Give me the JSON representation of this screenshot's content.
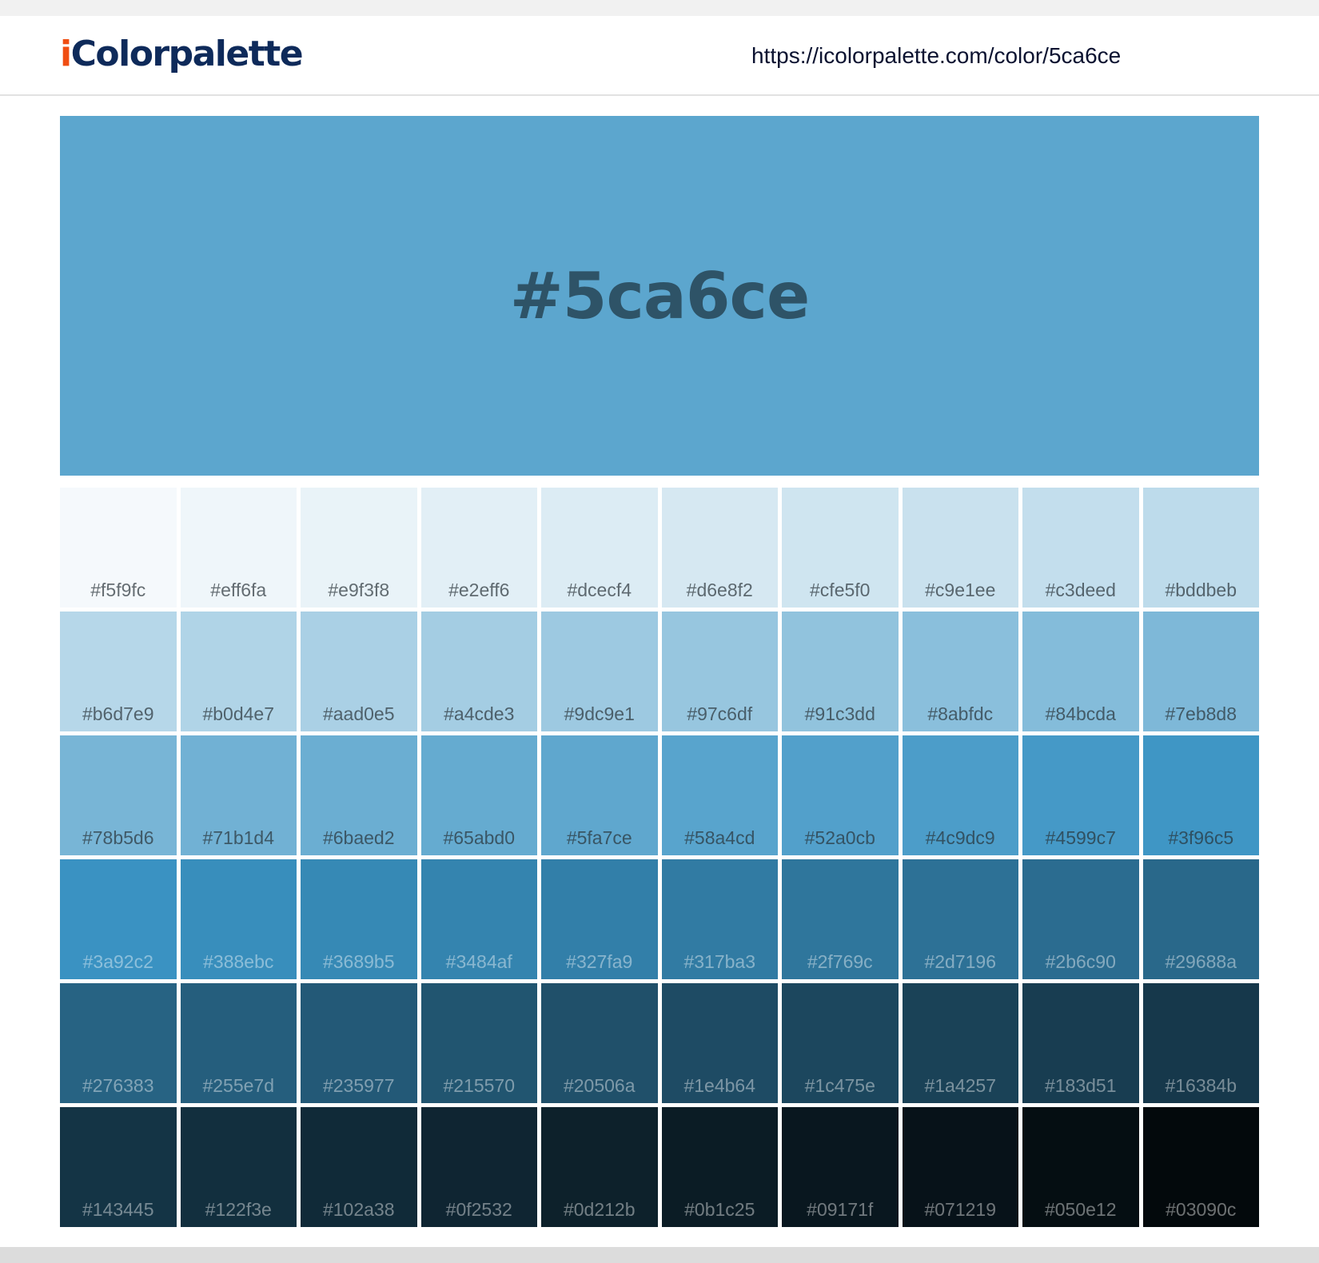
{
  "header": {
    "logo_i": "i",
    "logo_rest": "Colorpalette",
    "url": "https://icolorpalette.com/color/5ca6ce"
  },
  "hero": {
    "title": "#5ca6ce",
    "color": "#5ca6ce"
  },
  "shades": [
    "#f5f9fc",
    "#eff6fa",
    "#e9f3f8",
    "#e2eff6",
    "#dcecf4",
    "#d6e8f2",
    "#cfe5f0",
    "#c9e1ee",
    "#c3deed",
    "#bddbeb",
    "#b6d7e9",
    "#b0d4e7",
    "#aad0e5",
    "#a4cde3",
    "#9dc9e1",
    "#97c6df",
    "#91c3dd",
    "#8abfdc",
    "#84bcda",
    "#7eb8d8",
    "#78b5d6",
    "#71b1d4",
    "#6baed2",
    "#65abd0",
    "#5fa7ce",
    "#58a4cd",
    "#52a0cb",
    "#4c9dc9",
    "#4599c7",
    "#3f96c5",
    "#3a92c2",
    "#388ebc",
    "#3689b5",
    "#3484af",
    "#327fa9",
    "#317ba3",
    "#2f769c",
    "#2d7196",
    "#2b6c90",
    "#29688a",
    "#276383",
    "#255e7d",
    "#235977",
    "#215570",
    "#20506a",
    "#1e4b64",
    "#1c475e",
    "#1a4257",
    "#183d51",
    "#16384b",
    "#143445",
    "#122f3e",
    "#102a38",
    "#0f2532",
    "#0d212b",
    "#0b1c25",
    "#09171f",
    "#071219",
    "#050e12",
    "#03090c"
  ]
}
